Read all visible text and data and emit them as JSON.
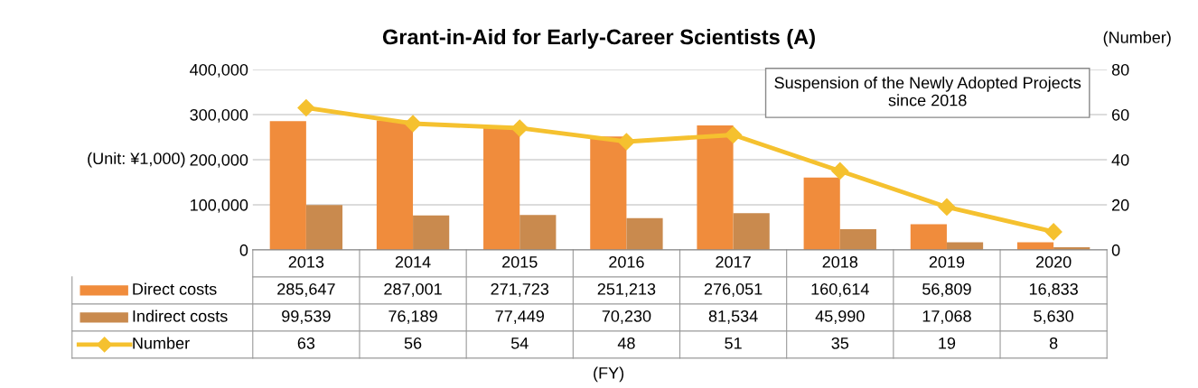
{
  "chart_data": {
    "type": "bar",
    "title": "Grant-in-Aid for Early-Career Scientists (A)",
    "ylabel": "(Unit: ¥1,000)",
    "y2label": "(Number)",
    "categories": [
      "2013",
      "2014",
      "2015",
      "2016",
      "2017",
      "2018",
      "2019",
      "2020"
    ],
    "series": [
      {
        "name": "Direct costs",
        "color": "#f08c3c",
        "values": [
          285647,
          287001,
          271723,
          251213,
          276051,
          160614,
          56809,
          16833
        ],
        "value_labels": [
          "285,647",
          "287,001",
          "271,723",
          "251,213",
          "276,051",
          "160,614",
          "56,809",
          "16,833"
        ]
      },
      {
        "name": "Indirect costs",
        "color": "#c98a4e",
        "values": [
          99539,
          76189,
          77449,
          70230,
          81534,
          45990,
          17068,
          5630
        ],
        "value_labels": [
          "99,539",
          "76,189",
          "77,449",
          "70,230",
          "81,534",
          "45,990",
          "17,068",
          "5,630"
        ]
      },
      {
        "name": "Number",
        "type": "line",
        "axis": "y2",
        "color": "#f5c12f",
        "marker": "diamond",
        "values": [
          63,
          56,
          54,
          48,
          51,
          35,
          19,
          8
        ],
        "value_labels": [
          "63",
          "56",
          "54",
          "48",
          "51",
          "35",
          "19",
          "8"
        ]
      }
    ],
    "ylim": [
      0,
      400000
    ],
    "yticks": [
      {
        "value": 0,
        "label": "0"
      },
      {
        "value": 100000,
        "label": "100,000"
      },
      {
        "value": 200000,
        "label": "200,000"
      },
      {
        "value": 300000,
        "label": "300,000"
      },
      {
        "value": 400000,
        "label": "400,000"
      }
    ],
    "y2lim": [
      0,
      80
    ],
    "y2ticks": [
      0,
      20,
      40,
      60,
      80
    ],
    "grid": "y",
    "legend": "bottom left",
    "annotations": [
      "Suspension of the Newly Adopted Projects\nsince 2018",
      "(FY)"
    ]
  }
}
